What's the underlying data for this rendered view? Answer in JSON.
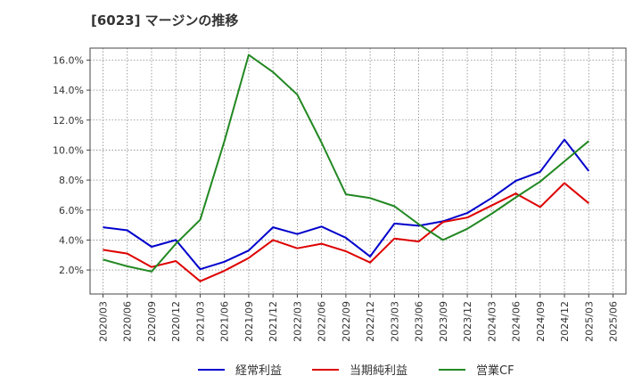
{
  "chart_data": {
    "type": "line",
    "title": "[6023]  マージンの推移",
    "xlabel": "",
    "ylabel": "",
    "x": [
      "2020/03",
      "2020/06",
      "2020/09",
      "2020/12",
      "2021/03",
      "2021/06",
      "2021/09",
      "2021/12",
      "2022/03",
      "2022/06",
      "2022/09",
      "2022/12",
      "2023/03",
      "2023/06",
      "2023/09",
      "2023/12",
      "2024/03",
      "2024/06",
      "2024/09",
      "2024/12",
      "2025/03",
      "2025/06"
    ],
    "ylim": [
      0.4,
      16.8
    ],
    "yticks": [
      2.0,
      4.0,
      6.0,
      8.0,
      10.0,
      12.0,
      14.0,
      16.0
    ],
    "ytick_labels": [
      "2.0%",
      "4.0%",
      "6.0%",
      "8.0%",
      "10.0%",
      "12.0%",
      "14.0%",
      "16.0%"
    ],
    "grid": true,
    "legend_position": "bottom",
    "series": [
      {
        "name": "経常利益",
        "color": "#0000cc",
        "values": [
          4.85,
          4.65,
          3.55,
          4.0,
          2.05,
          2.55,
          3.3,
          4.85,
          4.4,
          4.9,
          4.15,
          2.9,
          5.1,
          4.95,
          5.25,
          5.8,
          6.8,
          7.95,
          8.55,
          10.7,
          8.6,
          null
        ]
      },
      {
        "name": "当期純利益",
        "color": "#dd0000",
        "values": [
          3.35,
          3.1,
          2.2,
          2.6,
          1.25,
          1.95,
          2.8,
          4.0,
          3.45,
          3.75,
          3.25,
          2.5,
          4.1,
          3.9,
          5.2,
          5.5,
          6.3,
          7.1,
          6.2,
          7.8,
          6.45,
          null
        ]
      },
      {
        "name": "営業CF",
        "color": "#228822",
        "values": [
          2.7,
          2.25,
          1.9,
          3.75,
          5.35,
          10.6,
          16.35,
          15.2,
          13.7,
          10.5,
          7.05,
          6.8,
          6.25,
          5.05,
          4.0,
          4.75,
          5.75,
          6.85,
          7.9,
          9.25,
          10.6,
          null
        ]
      }
    ]
  }
}
